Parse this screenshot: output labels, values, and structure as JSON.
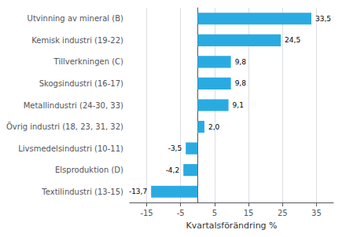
{
  "chart_data": {
    "type": "bar",
    "orientation": "horizontal",
    "categories": [
      "Textilindustri (13-15)",
      "Elsproduktion (D)",
      "Livsmedelsindustri (10-11)",
      "Övrig industri (18, 23, 31, 32)",
      "Metallindustri (24-30, 33)",
      "Skogsindustri (16-17)",
      "Tillverkningen (C)",
      "Kemisk industri (19-22)",
      "Utvinning av mineral (B)"
    ],
    "values": [
      -13.7,
      -4.2,
      -3.5,
      2.0,
      9.1,
      9.8,
      9.8,
      24.5,
      33.5
    ],
    "value_labels": [
      "-13,7",
      "-4,2",
      "-3,5",
      "2,0",
      "9,1",
      "9,8",
      "9,8",
      "24,5",
      "33,5"
    ],
    "data_labels": true,
    "color": "#29abe2",
    "xlabel": "Kvartalsförändring %",
    "xlim": [
      -20,
      40
    ],
    "xticks": [
      -15,
      -5,
      5,
      15,
      25,
      35
    ],
    "grid": true
  }
}
